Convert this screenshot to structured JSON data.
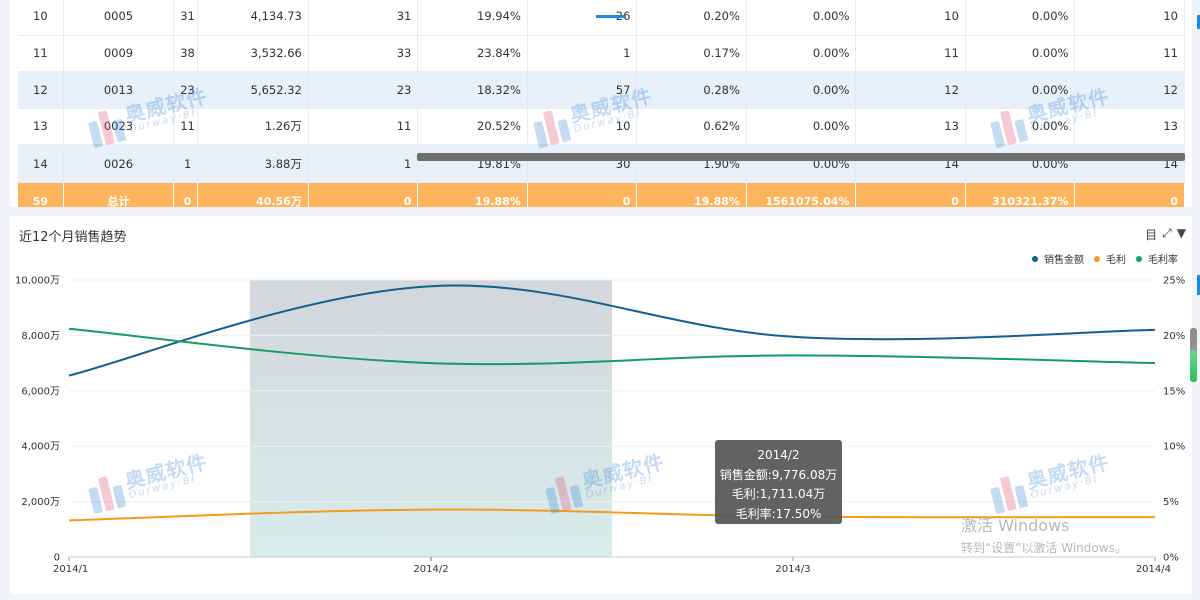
{
  "table": {
    "partial_top_row": [
      "10",
      "0005",
      "31",
      "4,134.73",
      "31",
      "19.94%",
      "26",
      "0.20%",
      "0.00%",
      "10",
      "0.00%",
      "10"
    ],
    "rows": [
      [
        "11",
        "0009",
        "38",
        "3,532.66",
        "33",
        "23.84%",
        "1",
        "0.17%",
        "0.00%",
        "11",
        "0.00%",
        "11"
      ],
      [
        "12",
        "0013",
        "23",
        "5,652.32",
        "23",
        "18.32%",
        "57",
        "0.28%",
        "0.00%",
        "12",
        "0.00%",
        "12"
      ],
      [
        "13",
        "0023",
        "11",
        "1.26万",
        "11",
        "20.52%",
        "10",
        "0.62%",
        "0.00%",
        "13",
        "0.00%",
        "13"
      ]
    ],
    "partial_bottom_row": [
      "14",
      "0026",
      "1",
      "3.88万",
      "1",
      "19.81%",
      "30",
      "1.90%",
      "0.00%",
      "14",
      "0.00%",
      "14"
    ],
    "total_row": [
      "59",
      "总计",
      "0",
      "40.56万",
      "0",
      "19.88%",
      "0",
      "19.88%",
      "1561075.04%",
      "0",
      "310321.37%",
      "0"
    ]
  },
  "chart": {
    "title": "近12个月销售趋势",
    "tools": {
      "table_icon": "目",
      "expand_icon": "⤢",
      "filter_icon": "▼"
    },
    "legend": [
      {
        "name": "销售金额",
        "color": "#135f8f"
      },
      {
        "name": "毛利",
        "color": "#f49a1d"
      },
      {
        "name": "毛利率",
        "color": "#179c62"
      }
    ],
    "tooltip": {
      "title": "2014/2",
      "line1": "销售金额:9,776.08万",
      "line2": "毛利:1,711.04万",
      "line3": "毛利率:17.50%"
    }
  },
  "chart_data": {
    "type": "line",
    "title": "近12个月销售趋势",
    "categories": [
      "2014/1",
      "2014/2",
      "2014/3",
      "2014/4"
    ],
    "y_left": {
      "ticks": [
        "0",
        "2,000万",
        "4,000万",
        "6,000万",
        "8,000万",
        "10,000万"
      ],
      "range": [
        0,
        10000
      ],
      "unit": "万"
    },
    "y_right": {
      "ticks": [
        "0%",
        "5%",
        "10%",
        "15%",
        "20%",
        "25%"
      ],
      "range": [
        0,
        25
      ]
    },
    "series": [
      {
        "name": "销售金额",
        "axis": "left",
        "values": [
          6550,
          9776.08,
          7950,
          8200
        ]
      },
      {
        "name": "毛利",
        "axis": "left",
        "values": [
          1320,
          1711.04,
          1460,
          1440
        ]
      },
      {
        "name": "毛利率",
        "axis": "right",
        "values": [
          20.6,
          17.5,
          18.2,
          17.5
        ]
      }
    ],
    "highlighted_category": "2014/2",
    "grid": true,
    "legend_position": "top-right"
  },
  "watermark": {
    "cn": "奥威软件",
    "en": "Ourway·BI"
  },
  "os_notice": {
    "line1": "激活 Windows",
    "line2": "转到“设置”以激活 Windows。"
  }
}
